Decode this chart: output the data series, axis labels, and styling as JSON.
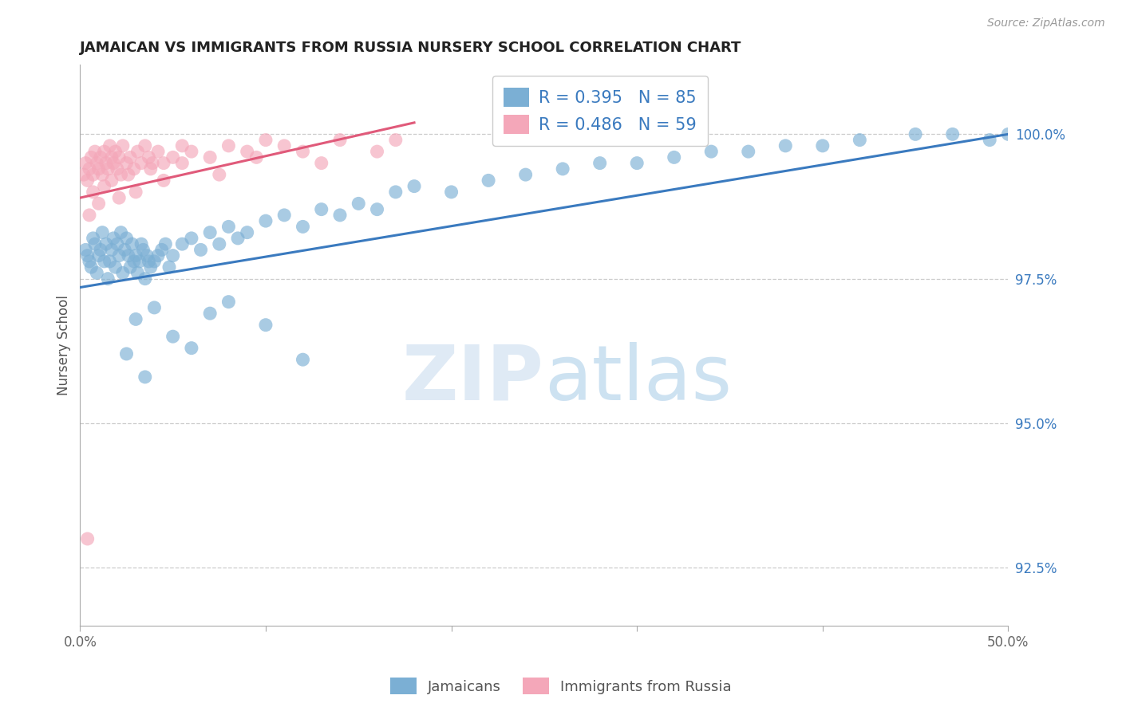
{
  "title": "JAMAICAN VS IMMIGRANTS FROM RUSSIA NURSERY SCHOOL CORRELATION CHART",
  "source_text": "Source: ZipAtlas.com",
  "ylabel": "Nursery School",
  "xlim": [
    0.0,
    50.0
  ],
  "ylim": [
    91.5,
    101.2
  ],
  "yticks_right": [
    92.5,
    95.0,
    97.5,
    100.0
  ],
  "ytick_labels_right": [
    "92.5%",
    "95.0%",
    "97.5%",
    "100.0%"
  ],
  "grid_color": "#cccccc",
  "background_color": "#ffffff",
  "blue_color": "#7bafd4",
  "pink_color": "#f4a7b9",
  "blue_line_color": "#3a7abf",
  "pink_line_color": "#e05a7a",
  "legend_R_blue": "R = 0.395",
  "legend_N_blue": "N = 85",
  "legend_R_pink": "R = 0.486",
  "legend_N_pink": "N = 59",
  "blue_line_x0": 0.0,
  "blue_line_x1": 50.0,
  "blue_line_y0": 97.35,
  "blue_line_y1": 100.0,
  "pink_line_x0": 0.0,
  "pink_line_x1": 18.0,
  "pink_line_y0": 98.9,
  "pink_line_y1": 100.2,
  "blue_scatter_x": [
    0.3,
    0.4,
    0.5,
    0.6,
    0.7,
    0.8,
    0.9,
    1.0,
    1.1,
    1.2,
    1.3,
    1.4,
    1.5,
    1.6,
    1.7,
    1.8,
    1.9,
    2.0,
    2.1,
    2.2,
    2.3,
    2.4,
    2.5,
    2.6,
    2.7,
    2.8,
    2.9,
    3.0,
    3.1,
    3.2,
    3.3,
    3.4,
    3.5,
    3.6,
    3.7,
    3.8,
    4.0,
    4.2,
    4.4,
    4.6,
    4.8,
    5.0,
    5.5,
    6.0,
    6.5,
    7.0,
    7.5,
    8.0,
    8.5,
    9.0,
    10.0,
    11.0,
    12.0,
    13.0,
    14.0,
    15.0,
    16.0,
    17.0,
    18.0,
    20.0,
    22.0,
    24.0,
    26.0,
    28.0,
    30.0,
    32.0,
    34.0,
    36.0,
    38.0,
    40.0,
    42.0,
    45.0,
    47.0,
    49.0,
    50.0,
    2.5,
    3.0,
    3.5,
    4.0,
    5.0,
    6.0,
    7.0,
    8.0,
    10.0,
    12.0
  ],
  "blue_scatter_y": [
    98.0,
    97.9,
    97.8,
    97.7,
    98.2,
    98.1,
    97.6,
    97.9,
    98.0,
    98.3,
    97.8,
    98.1,
    97.5,
    97.8,
    98.0,
    98.2,
    97.7,
    98.1,
    97.9,
    98.3,
    97.6,
    98.0,
    98.2,
    97.9,
    97.7,
    98.1,
    97.8,
    97.9,
    97.6,
    97.8,
    98.1,
    98.0,
    97.5,
    97.9,
    97.8,
    97.7,
    97.8,
    97.9,
    98.0,
    98.1,
    97.7,
    97.9,
    98.1,
    98.2,
    98.0,
    98.3,
    98.1,
    98.4,
    98.2,
    98.3,
    98.5,
    98.6,
    98.4,
    98.7,
    98.6,
    98.8,
    98.7,
    99.0,
    99.1,
    99.0,
    99.2,
    99.3,
    99.4,
    99.5,
    99.5,
    99.6,
    99.7,
    99.7,
    99.8,
    99.8,
    99.9,
    100.0,
    100.0,
    99.9,
    100.0,
    96.2,
    96.8,
    95.8,
    97.0,
    96.5,
    96.3,
    96.9,
    97.1,
    96.7,
    96.1
  ],
  "pink_scatter_x": [
    0.2,
    0.3,
    0.4,
    0.5,
    0.6,
    0.7,
    0.8,
    0.9,
    1.0,
    1.1,
    1.2,
    1.3,
    1.4,
    1.5,
    1.6,
    1.7,
    1.8,
    1.9,
    2.0,
    2.1,
    2.2,
    2.3,
    2.5,
    2.7,
    2.9,
    3.1,
    3.3,
    3.5,
    3.7,
    3.9,
    4.2,
    4.5,
    5.0,
    5.5,
    6.0,
    7.0,
    8.0,
    9.0,
    10.0,
    11.0,
    12.0,
    14.0,
    17.0,
    0.5,
    0.7,
    1.0,
    1.3,
    1.7,
    2.1,
    2.6,
    3.0,
    3.8,
    4.5,
    5.5,
    7.5,
    9.5,
    13.0,
    16.0,
    0.4
  ],
  "pink_scatter_y": [
    99.3,
    99.5,
    99.2,
    99.4,
    99.6,
    99.3,
    99.7,
    99.5,
    99.4,
    99.6,
    99.3,
    99.7,
    99.5,
    99.4,
    99.8,
    99.6,
    99.5,
    99.7,
    99.4,
    99.6,
    99.3,
    99.8,
    99.5,
    99.6,
    99.4,
    99.7,
    99.5,
    99.8,
    99.6,
    99.5,
    99.7,
    99.5,
    99.6,
    99.8,
    99.7,
    99.6,
    99.8,
    99.7,
    99.9,
    99.8,
    99.7,
    99.9,
    99.9,
    98.6,
    99.0,
    98.8,
    99.1,
    99.2,
    98.9,
    99.3,
    99.0,
    99.4,
    99.2,
    99.5,
    99.3,
    99.6,
    99.5,
    99.7,
    93.0
  ]
}
